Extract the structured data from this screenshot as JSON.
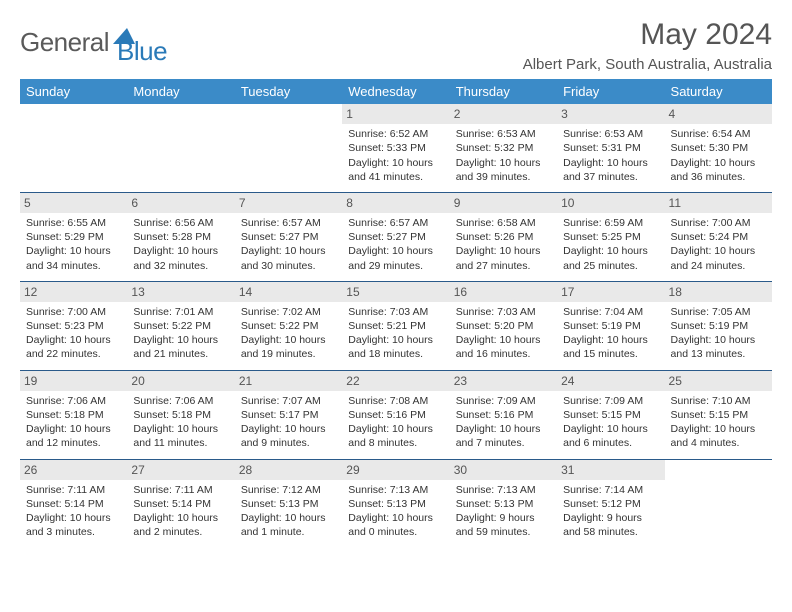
{
  "brand": {
    "part1": "General",
    "part2": "Blue"
  },
  "title": "May 2024",
  "location": "Albert Park, South Australia, Australia",
  "colors": {
    "header_bg": "#3b8bc8",
    "header_text": "#ffffff",
    "daynum_bg": "#e9e9e9",
    "divider": "#2a5a8a",
    "brand_gray": "#5a5a5a",
    "brand_blue": "#2a7ab8"
  },
  "weekdays": [
    "Sunday",
    "Monday",
    "Tuesday",
    "Wednesday",
    "Thursday",
    "Friday",
    "Saturday"
  ],
  "weeks": [
    [
      null,
      null,
      null,
      {
        "n": "1",
        "sr": "Sunrise: 6:52 AM",
        "ss": "Sunset: 5:33 PM",
        "d1": "Daylight: 10 hours",
        "d2": "and 41 minutes."
      },
      {
        "n": "2",
        "sr": "Sunrise: 6:53 AM",
        "ss": "Sunset: 5:32 PM",
        "d1": "Daylight: 10 hours",
        "d2": "and 39 minutes."
      },
      {
        "n": "3",
        "sr": "Sunrise: 6:53 AM",
        "ss": "Sunset: 5:31 PM",
        "d1": "Daylight: 10 hours",
        "d2": "and 37 minutes."
      },
      {
        "n": "4",
        "sr": "Sunrise: 6:54 AM",
        "ss": "Sunset: 5:30 PM",
        "d1": "Daylight: 10 hours",
        "d2": "and 36 minutes."
      }
    ],
    [
      {
        "n": "5",
        "sr": "Sunrise: 6:55 AM",
        "ss": "Sunset: 5:29 PM",
        "d1": "Daylight: 10 hours",
        "d2": "and 34 minutes."
      },
      {
        "n": "6",
        "sr": "Sunrise: 6:56 AM",
        "ss": "Sunset: 5:28 PM",
        "d1": "Daylight: 10 hours",
        "d2": "and 32 minutes."
      },
      {
        "n": "7",
        "sr": "Sunrise: 6:57 AM",
        "ss": "Sunset: 5:27 PM",
        "d1": "Daylight: 10 hours",
        "d2": "and 30 minutes."
      },
      {
        "n": "8",
        "sr": "Sunrise: 6:57 AM",
        "ss": "Sunset: 5:27 PM",
        "d1": "Daylight: 10 hours",
        "d2": "and 29 minutes."
      },
      {
        "n": "9",
        "sr": "Sunrise: 6:58 AM",
        "ss": "Sunset: 5:26 PM",
        "d1": "Daylight: 10 hours",
        "d2": "and 27 minutes."
      },
      {
        "n": "10",
        "sr": "Sunrise: 6:59 AM",
        "ss": "Sunset: 5:25 PM",
        "d1": "Daylight: 10 hours",
        "d2": "and 25 minutes."
      },
      {
        "n": "11",
        "sr": "Sunrise: 7:00 AM",
        "ss": "Sunset: 5:24 PM",
        "d1": "Daylight: 10 hours",
        "d2": "and 24 minutes."
      }
    ],
    [
      {
        "n": "12",
        "sr": "Sunrise: 7:00 AM",
        "ss": "Sunset: 5:23 PM",
        "d1": "Daylight: 10 hours",
        "d2": "and 22 minutes."
      },
      {
        "n": "13",
        "sr": "Sunrise: 7:01 AM",
        "ss": "Sunset: 5:22 PM",
        "d1": "Daylight: 10 hours",
        "d2": "and 21 minutes."
      },
      {
        "n": "14",
        "sr": "Sunrise: 7:02 AM",
        "ss": "Sunset: 5:22 PM",
        "d1": "Daylight: 10 hours",
        "d2": "and 19 minutes."
      },
      {
        "n": "15",
        "sr": "Sunrise: 7:03 AM",
        "ss": "Sunset: 5:21 PM",
        "d1": "Daylight: 10 hours",
        "d2": "and 18 minutes."
      },
      {
        "n": "16",
        "sr": "Sunrise: 7:03 AM",
        "ss": "Sunset: 5:20 PM",
        "d1": "Daylight: 10 hours",
        "d2": "and 16 minutes."
      },
      {
        "n": "17",
        "sr": "Sunrise: 7:04 AM",
        "ss": "Sunset: 5:19 PM",
        "d1": "Daylight: 10 hours",
        "d2": "and 15 minutes."
      },
      {
        "n": "18",
        "sr": "Sunrise: 7:05 AM",
        "ss": "Sunset: 5:19 PM",
        "d1": "Daylight: 10 hours",
        "d2": "and 13 minutes."
      }
    ],
    [
      {
        "n": "19",
        "sr": "Sunrise: 7:06 AM",
        "ss": "Sunset: 5:18 PM",
        "d1": "Daylight: 10 hours",
        "d2": "and 12 minutes."
      },
      {
        "n": "20",
        "sr": "Sunrise: 7:06 AM",
        "ss": "Sunset: 5:18 PM",
        "d1": "Daylight: 10 hours",
        "d2": "and 11 minutes."
      },
      {
        "n": "21",
        "sr": "Sunrise: 7:07 AM",
        "ss": "Sunset: 5:17 PM",
        "d1": "Daylight: 10 hours",
        "d2": "and 9 minutes."
      },
      {
        "n": "22",
        "sr": "Sunrise: 7:08 AM",
        "ss": "Sunset: 5:16 PM",
        "d1": "Daylight: 10 hours",
        "d2": "and 8 minutes."
      },
      {
        "n": "23",
        "sr": "Sunrise: 7:09 AM",
        "ss": "Sunset: 5:16 PM",
        "d1": "Daylight: 10 hours",
        "d2": "and 7 minutes."
      },
      {
        "n": "24",
        "sr": "Sunrise: 7:09 AM",
        "ss": "Sunset: 5:15 PM",
        "d1": "Daylight: 10 hours",
        "d2": "and 6 minutes."
      },
      {
        "n": "25",
        "sr": "Sunrise: 7:10 AM",
        "ss": "Sunset: 5:15 PM",
        "d1": "Daylight: 10 hours",
        "d2": "and 4 minutes."
      }
    ],
    [
      {
        "n": "26",
        "sr": "Sunrise: 7:11 AM",
        "ss": "Sunset: 5:14 PM",
        "d1": "Daylight: 10 hours",
        "d2": "and 3 minutes."
      },
      {
        "n": "27",
        "sr": "Sunrise: 7:11 AM",
        "ss": "Sunset: 5:14 PM",
        "d1": "Daylight: 10 hours",
        "d2": "and 2 minutes."
      },
      {
        "n": "28",
        "sr": "Sunrise: 7:12 AM",
        "ss": "Sunset: 5:13 PM",
        "d1": "Daylight: 10 hours",
        "d2": "and 1 minute."
      },
      {
        "n": "29",
        "sr": "Sunrise: 7:13 AM",
        "ss": "Sunset: 5:13 PM",
        "d1": "Daylight: 10 hours",
        "d2": "and 0 minutes."
      },
      {
        "n": "30",
        "sr": "Sunrise: 7:13 AM",
        "ss": "Sunset: 5:13 PM",
        "d1": "Daylight: 9 hours",
        "d2": "and 59 minutes."
      },
      {
        "n": "31",
        "sr": "Sunrise: 7:14 AM",
        "ss": "Sunset: 5:12 PM",
        "d1": "Daylight: 9 hours",
        "d2": "and 58 minutes."
      },
      null
    ]
  ]
}
